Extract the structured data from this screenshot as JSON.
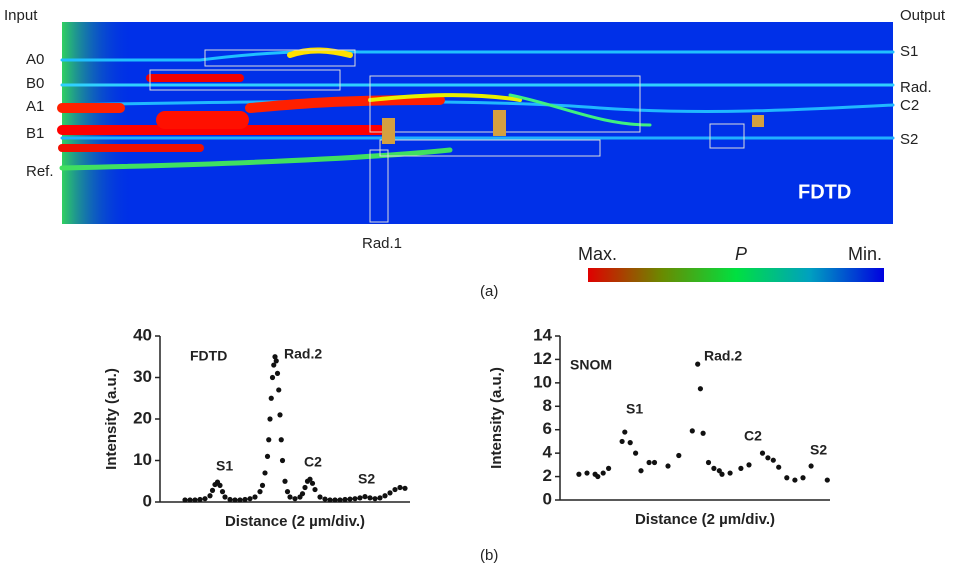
{
  "figure_a": {
    "input": "Input",
    "output": "Output",
    "inputs": [
      "A0",
      "B0",
      "A1",
      "B1",
      "Ref."
    ],
    "outputs": [
      "S1",
      "Rad.",
      "C2",
      "S2"
    ],
    "method": "FDTD",
    "rad1": "Rad.1",
    "colorbar": {
      "max": "Max.",
      "quantity": "P",
      "min": "Min."
    },
    "caption": "(a)"
  },
  "caption_b": "(b)",
  "chart_data": [
    {
      "type": "scatter",
      "ylabel": "Intensity (a.u.)",
      "xlabel": "Distance (2 µm/div.)",
      "color": "#111",
      "annotations": [
        "FDTD",
        "Rad.2",
        "S1",
        "C2",
        "S2"
      ],
      "ylim": [
        0,
        40
      ],
      "yticks": [
        0,
        10,
        20,
        30,
        40
      ],
      "xlim": [
        0,
        100
      ],
      "x": [
        10,
        12,
        14,
        16,
        18,
        20,
        21,
        22,
        23,
        24,
        25,
        26,
        28,
        30,
        32,
        34,
        36,
        38,
        40,
        41,
        42,
        43,
        43.5,
        44,
        44.5,
        45,
        45.5,
        46,
        46.5,
        47,
        47.5,
        48,
        48.5,
        49,
        50,
        51,
        52,
        54,
        56,
        57,
        58,
        59,
        60,
        61,
        62,
        64,
        66,
        68,
        70,
        72,
        74,
        76,
        78,
        80,
        82,
        84,
        86,
        88,
        90,
        92,
        94,
        96,
        98
      ],
      "values": [
        0.5,
        0.5,
        0.5,
        0.6,
        0.8,
        1.5,
        2.8,
        4.2,
        4.8,
        4.0,
        2.5,
        1.2,
        0.6,
        0.5,
        0.5,
        0.6,
        0.8,
        1.2,
        2.5,
        4,
        7,
        11,
        15,
        20,
        25,
        30,
        33,
        35,
        34,
        31,
        27,
        21,
        15,
        10,
        5,
        2.5,
        1.2,
        0.8,
        1.2,
        2,
        3.5,
        5,
        5.5,
        4.5,
        3,
        1.2,
        0.7,
        0.5,
        0.5,
        0.5,
        0.6,
        0.7,
        0.8,
        1.0,
        1.3,
        1.0,
        0.8,
        1.0,
        1.5,
        2.2,
        3.0,
        3.5,
        3.3
      ]
    },
    {
      "type": "scatter",
      "ylabel": "Intensity (a.u.)",
      "xlabel": "Distance (2 µm/div.)",
      "color": "#111",
      "annotations": [
        "SNOM",
        "Rad.2",
        "S1",
        "C2",
        "S2"
      ],
      "ylim": [
        0,
        14
      ],
      "yticks": [
        0,
        2,
        4,
        6,
        8,
        10,
        12,
        14
      ],
      "xlim": [
        0,
        100
      ],
      "x": [
        7,
        10,
        13,
        14,
        16,
        18,
        23,
        24,
        26,
        28,
        30,
        33,
        35,
        40,
        44,
        49,
        51,
        52,
        53,
        55,
        57,
        59,
        60,
        63,
        67,
        70,
        75,
        77,
        79,
        81,
        84,
        87,
        90,
        93,
        99
      ],
      "values": [
        2.2,
        2.3,
        2.2,
        2.0,
        2.3,
        2.7,
        5.0,
        5.8,
        4.9,
        4.0,
        2.5,
        3.2,
        3.2,
        2.9,
        3.8,
        5.9,
        11.6,
        9.5,
        5.7,
        3.2,
        2.7,
        2.5,
        2.2,
        2.3,
        2.7,
        3.0,
        4.0,
        3.6,
        3.4,
        2.8,
        1.9,
        1.7,
        1.9,
        2.9,
        1.7
      ]
    }
  ]
}
